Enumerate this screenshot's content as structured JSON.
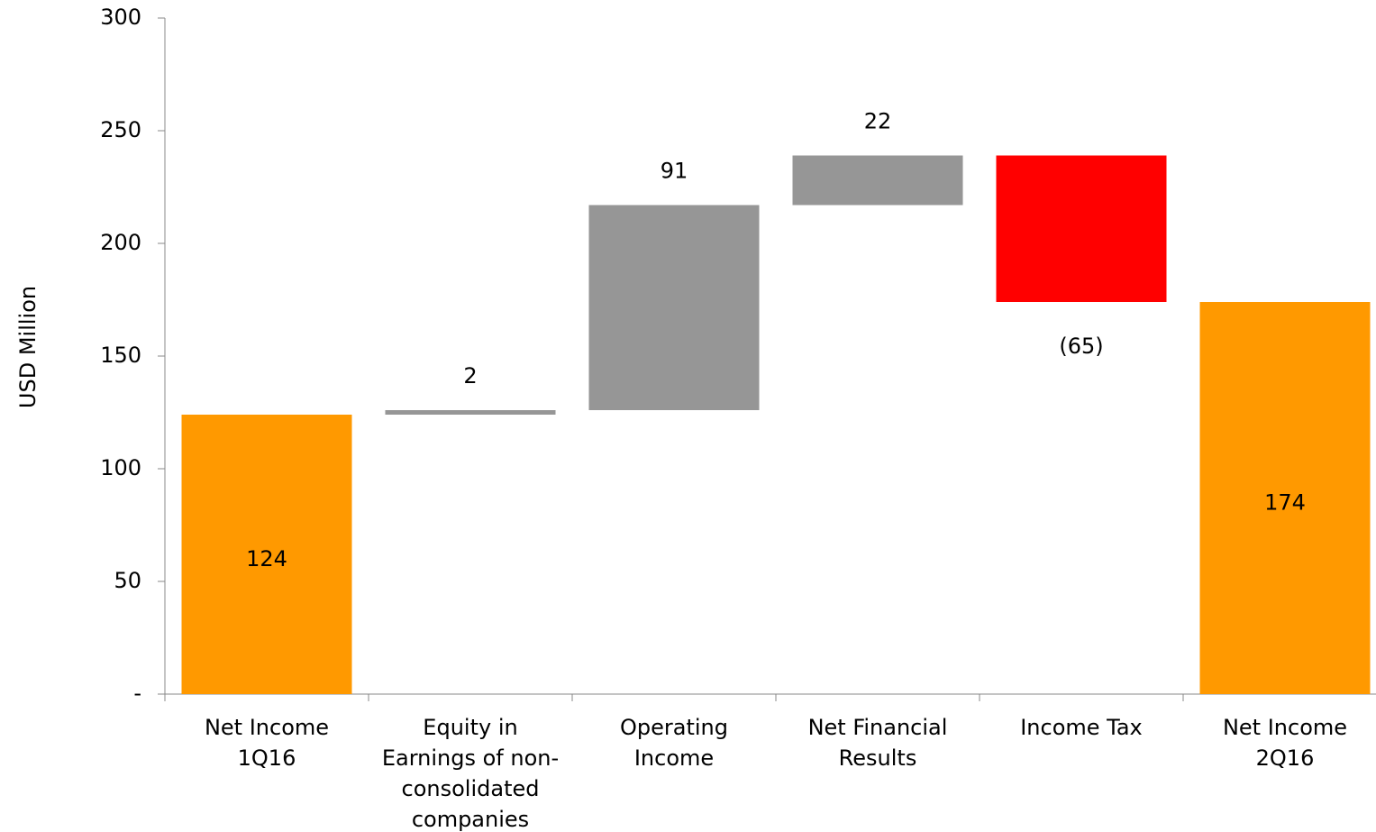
{
  "chart_data": {
    "type": "waterfall",
    "y_label": "USD Million",
    "categories": [
      "Net Income\n1Q16",
      "Equity in\nEarnings of non-\nconsolidated\ncompanies",
      "Operating\nIncome",
      "Net Financial\nResults",
      "Income Tax",
      "Net Income\n2Q16"
    ],
    "values": [
      124,
      2,
      91,
      22,
      -65,
      174
    ],
    "value_labels": [
      "124",
      "2",
      "91",
      "22",
      "(65)",
      "174"
    ],
    "is_total": [
      true,
      false,
      false,
      false,
      false,
      true
    ],
    "colors": [
      "#ff9900",
      "#969696",
      "#969696",
      "#969696",
      "#ff0000",
      "#ff9900"
    ],
    "ylim": [
      0,
      300
    ],
    "yticks": [
      {
        "value": 0,
        "label": "-"
      },
      50,
      100,
      150,
      200,
      250,
      300
    ],
    "grid": false
  }
}
